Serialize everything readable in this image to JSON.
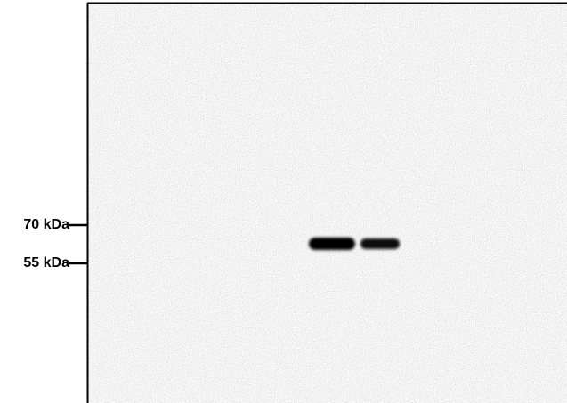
{
  "markers": [
    {
      "label": "70 kDa"
    },
    {
      "label": "55 kDa"
    }
  ]
}
